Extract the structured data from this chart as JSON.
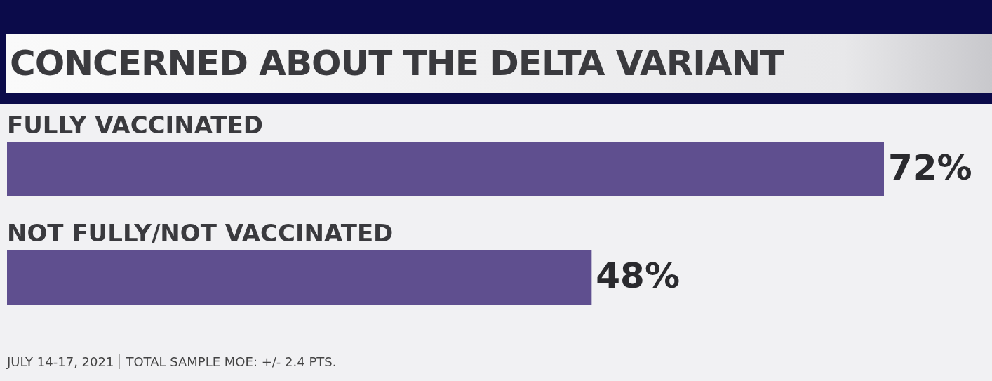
{
  "chart_data": {
    "type": "bar",
    "orientation": "horizontal",
    "title": "CONCERNED ABOUT THE DELTA VARIANT",
    "categories": [
      "FULLY VACCINATED",
      "NOT FULLY/NOT VACCINATED"
    ],
    "values": [
      72,
      48
    ],
    "color": "#5f4f8f",
    "value_labels": [
      "72%",
      "48%"
    ],
    "annotations": [
      "JULY 14-17, 2021",
      "TOTAL SAMPLE MOE: +/- 2.4 PTS."
    ]
  }
}
